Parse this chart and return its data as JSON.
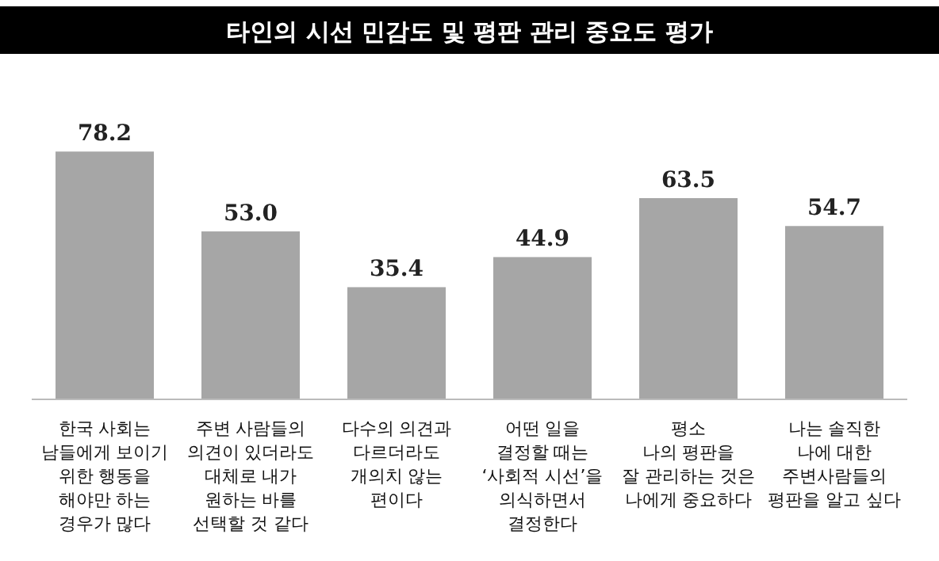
{
  "chart_data": {
    "type": "bar",
    "title": "타인의 시선 민감도 및 평판 관리 중요도 평가",
    "categories": [
      "한국 사회는\n남들에게 보이기\n위한 행동을\n해야만 하는\n경우가 많다",
      "주변 사람들의\n의견이 있더라도\n대체로 내가\n원하는 바를\n선택할 것 같다",
      "다수의 의견과\n다르더라도\n개의치 않는\n편이다",
      "어떤 일을\n결정할 때는\n‘사회적 시선’을\n의식하면서\n결정한다",
      "평소\n나의 평판을\n잘 관리하는 것은\n나에게 중요하다",
      "나는 솔직한\n나에 대한\n주변사람들의\n평판을 알고 싶다"
    ],
    "values": [
      78.2,
      53.0,
      35.4,
      44.9,
      63.5,
      54.7
    ],
    "value_labels": [
      "78.2",
      "53.0",
      "35.4",
      "44.9",
      "63.5",
      "54.7"
    ],
    "color": "#a6a6a6"
  }
}
